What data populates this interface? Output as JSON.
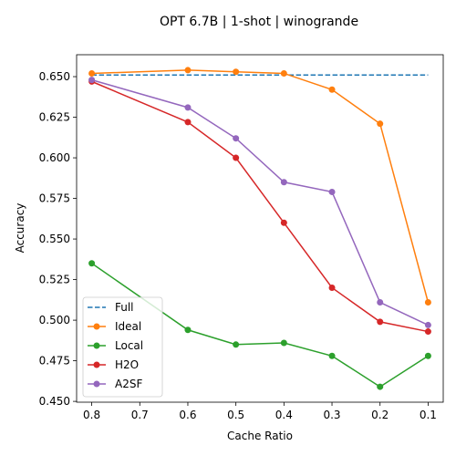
{
  "chart_data": {
    "type": "line",
    "title": "OPT 6.7B | 1-shot | winogrande",
    "xlabel": "Cache Ratio",
    "ylabel": "Accuracy",
    "x": [
      0.8,
      0.6,
      0.5,
      0.4,
      0.3,
      0.2,
      0.1
    ],
    "x_ticks": [
      "0.8",
      "0.7",
      "0.6",
      "0.5",
      "0.4",
      "0.3",
      "0.2",
      "0.1"
    ],
    "x_reversed": true,
    "y_ticks": [
      "0.450",
      "0.475",
      "0.500",
      "0.525",
      "0.550",
      "0.575",
      "0.600",
      "0.625",
      "0.650"
    ],
    "ylim": [
      0.4495,
      0.6635
    ],
    "legend_position": "lower-left",
    "series": [
      {
        "name": "Full",
        "color": "#1f77b4",
        "style": "dashed",
        "x": [
          0.8,
          0.1
        ],
        "values": [
          0.651,
          0.651
        ]
      },
      {
        "name": "Ideal",
        "color": "#ff7f0e",
        "style": "solid",
        "values": [
          0.652,
          0.654,
          0.653,
          0.652,
          0.642,
          0.621,
          0.511
        ]
      },
      {
        "name": "Local",
        "color": "#2ca02c",
        "style": "solid",
        "values": [
          0.535,
          0.494,
          0.485,
          0.486,
          0.478,
          0.459,
          0.478
        ]
      },
      {
        "name": "H2O",
        "color": "#d62728",
        "style": "solid",
        "values": [
          0.647,
          0.622,
          0.6,
          0.56,
          0.52,
          0.499,
          0.493
        ]
      },
      {
        "name": "A2SF",
        "color": "#9467bd",
        "style": "solid",
        "values": [
          0.648,
          0.631,
          0.612,
          0.585,
          0.579,
          0.511,
          0.497
        ]
      }
    ]
  }
}
